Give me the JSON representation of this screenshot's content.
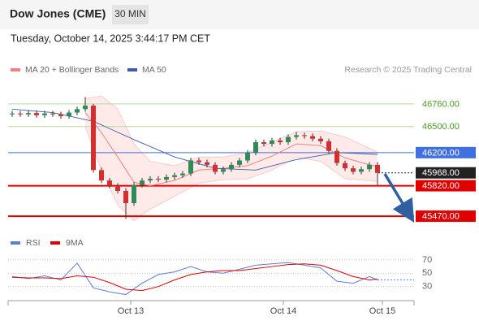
{
  "header": {
    "title": "Dow Jones (CME)",
    "interval": "30 MIN",
    "timestamp": "Tuesday, October 14, 2025 3:44:17 PM CET",
    "credit": "Research © 2025 Trading Central"
  },
  "chart_data": [
    {
      "type": "candlestick",
      "x": [
        0,
        1,
        2,
        3,
        4,
        5,
        6,
        7,
        8,
        9,
        10,
        11,
        12,
        13,
        14,
        15,
        16,
        17,
        18,
        19,
        20,
        21,
        22,
        23,
        24,
        25,
        26,
        27,
        28,
        29,
        30,
        31,
        32,
        33,
        34,
        35,
        36,
        37,
        38,
        39,
        40,
        41,
        42,
        43,
        44,
        45
      ],
      "open": [
        46640,
        46650,
        46640,
        46655,
        46630,
        46650,
        46640,
        46620,
        46660,
        46700,
        46740,
        46000,
        45880,
        45820,
        45760,
        45620,
        45830,
        45880,
        45900,
        45890,
        45920,
        45940,
        45960,
        46110,
        46090,
        46060,
        45980,
        46010,
        46060,
        46110,
        46200,
        46320,
        46300,
        46340,
        46320,
        46380,
        46400,
        46390,
        46360,
        46330,
        46220,
        46080,
        46020,
        45980,
        46010,
        46060
      ],
      "high": [
        46680,
        46680,
        46685,
        46685,
        46680,
        46680,
        46670,
        46690,
        46730,
        46840,
        46760,
        46030,
        45910,
        45850,
        45790,
        45860,
        45910,
        45930,
        45930,
        45950,
        45970,
        45990,
        46140,
        46140,
        46120,
        46090,
        46040,
        46090,
        46140,
        46230,
        46350,
        46350,
        46370,
        46370,
        46410,
        46440,
        46430,
        46420,
        46390,
        46360,
        46250,
        46110,
        46050,
        46040,
        46090,
        46090
      ],
      "low": [
        46610,
        46610,
        46610,
        46600,
        46600,
        46610,
        46590,
        46590,
        46630,
        46670,
        45970,
        45850,
        45790,
        45730,
        45440,
        45590,
        45800,
        45850,
        45860,
        45860,
        45890,
        45910,
        45930,
        46060,
        46030,
        45950,
        45950,
        45980,
        46030,
        46080,
        46170,
        46270,
        46270,
        46290,
        46290,
        46350,
        46360,
        46330,
        46300,
        46190,
        46050,
        45990,
        45950,
        45950,
        45980,
        45830
      ],
      "close": [
        46650,
        46640,
        46655,
        46630,
        46650,
        46640,
        46620,
        46660,
        46700,
        46740,
        46000,
        45880,
        45820,
        45760,
        45620,
        45830,
        45880,
        45900,
        45890,
        45920,
        45940,
        45960,
        46110,
        46090,
        46060,
        45980,
        46010,
        46060,
        46110,
        46200,
        46320,
        46300,
        46340,
        46320,
        46380,
        46400,
        46390,
        46360,
        46330,
        46220,
        46080,
        46020,
        45980,
        46010,
        46060,
        45968
      ],
      "up_color": "#2e8b57",
      "down_color": "#d32f2f",
      "series": [
        {
          "name": "MA 20 + Bollinger Bands",
          "color": "#f08080",
          "x": [
            9,
            11,
            13,
            15,
            17,
            20,
            23,
            26,
            29,
            32,
            35,
            38,
            41,
            44,
            45
          ],
          "values": [
            46660,
            46430,
            46150,
            45860,
            45820,
            45880,
            46000,
            46020,
            46050,
            46160,
            46300,
            46280,
            46140,
            46060,
            46040
          ],
          "upper": [
            46820,
            46850,
            46700,
            46300,
            46100,
            46050,
            46150,
            46150,
            46200,
            46320,
            46440,
            46450,
            46380,
            46250,
            46200
          ],
          "lower": [
            46500,
            46000,
            45600,
            45420,
            45550,
            45700,
            45850,
            45890,
            45900,
            46000,
            46150,
            46100,
            45900,
            45880,
            45870
          ]
        },
        {
          "name": "MA 50",
          "color": "#3a5ea8",
          "x": [
            0,
            5,
            10,
            15,
            20,
            25,
            30,
            35,
            40,
            45
          ],
          "values": [
            46700,
            46660,
            46560,
            46350,
            46150,
            46020,
            46000,
            46120,
            46200,
            46180
          ]
        }
      ],
      "levels": [
        {
          "value": 46760,
          "label": "46760.00",
          "color": "#b5d99c",
          "text_color": "#4e9a2a",
          "box": false
        },
        {
          "value": 46500,
          "label": "46500.00",
          "color": "#b5d99c",
          "text_color": "#4e9a2a",
          "box": false
        },
        {
          "value": 46200,
          "label": "46200.00",
          "color": "#3f6fe0",
          "text_color": "#ffffff",
          "box": true
        },
        {
          "value": 45968,
          "label": "45968.00",
          "color": "#222222",
          "text_color": "#ffffff",
          "box": true
        },
        {
          "value": 45820,
          "label": "45820.00",
          "color": "#e00000",
          "text_color": "#ffffff",
          "box": true
        },
        {
          "value": 45470,
          "label": "45470.00",
          "color": "#e00000",
          "text_color": "#ffffff",
          "box": true
        }
      ],
      "xlim": [
        -0.5,
        49.5
      ],
      "ylim": [
        45340,
        47020
      ]
    },
    {
      "type": "line",
      "series": [
        {
          "name": "RSI",
          "color": "#5b7fd6",
          "x": [
            0,
            2,
            4,
            6,
            8,
            10,
            12,
            14,
            16,
            18,
            20,
            22,
            24,
            26,
            28,
            30,
            32,
            34,
            36,
            38,
            40,
            42,
            44,
            45
          ],
          "values": [
            45,
            42,
            46,
            40,
            65,
            28,
            22,
            18,
            35,
            48,
            52,
            60,
            52,
            50,
            56,
            62,
            64,
            66,
            62,
            58,
            38,
            35,
            45,
            40
          ]
        },
        {
          "name": "9MA",
          "color": "#e00000",
          "x": [
            0,
            2,
            4,
            6,
            8,
            10,
            12,
            14,
            16,
            18,
            20,
            22,
            24,
            26,
            28,
            30,
            32,
            34,
            36,
            38,
            40,
            42,
            44,
            45
          ],
          "values": [
            44,
            43,
            43,
            42,
            46,
            44,
            36,
            26,
            24,
            30,
            40,
            48,
            52,
            54,
            54,
            57,
            60,
            63,
            64,
            62,
            54,
            45,
            40,
            41
          ]
        }
      ],
      "xlim": [
        -0.5,
        49.5
      ],
      "ylim": [
        15,
        82
      ],
      "yticks": [
        70,
        50,
        30
      ],
      "xticks": [
        {
          "value": 14.6,
          "label": "Oct 13"
        },
        {
          "value": 33.4,
          "label": "Oct 14"
        },
        {
          "value": 45.6,
          "label": "Oct 15"
        }
      ]
    }
  ]
}
